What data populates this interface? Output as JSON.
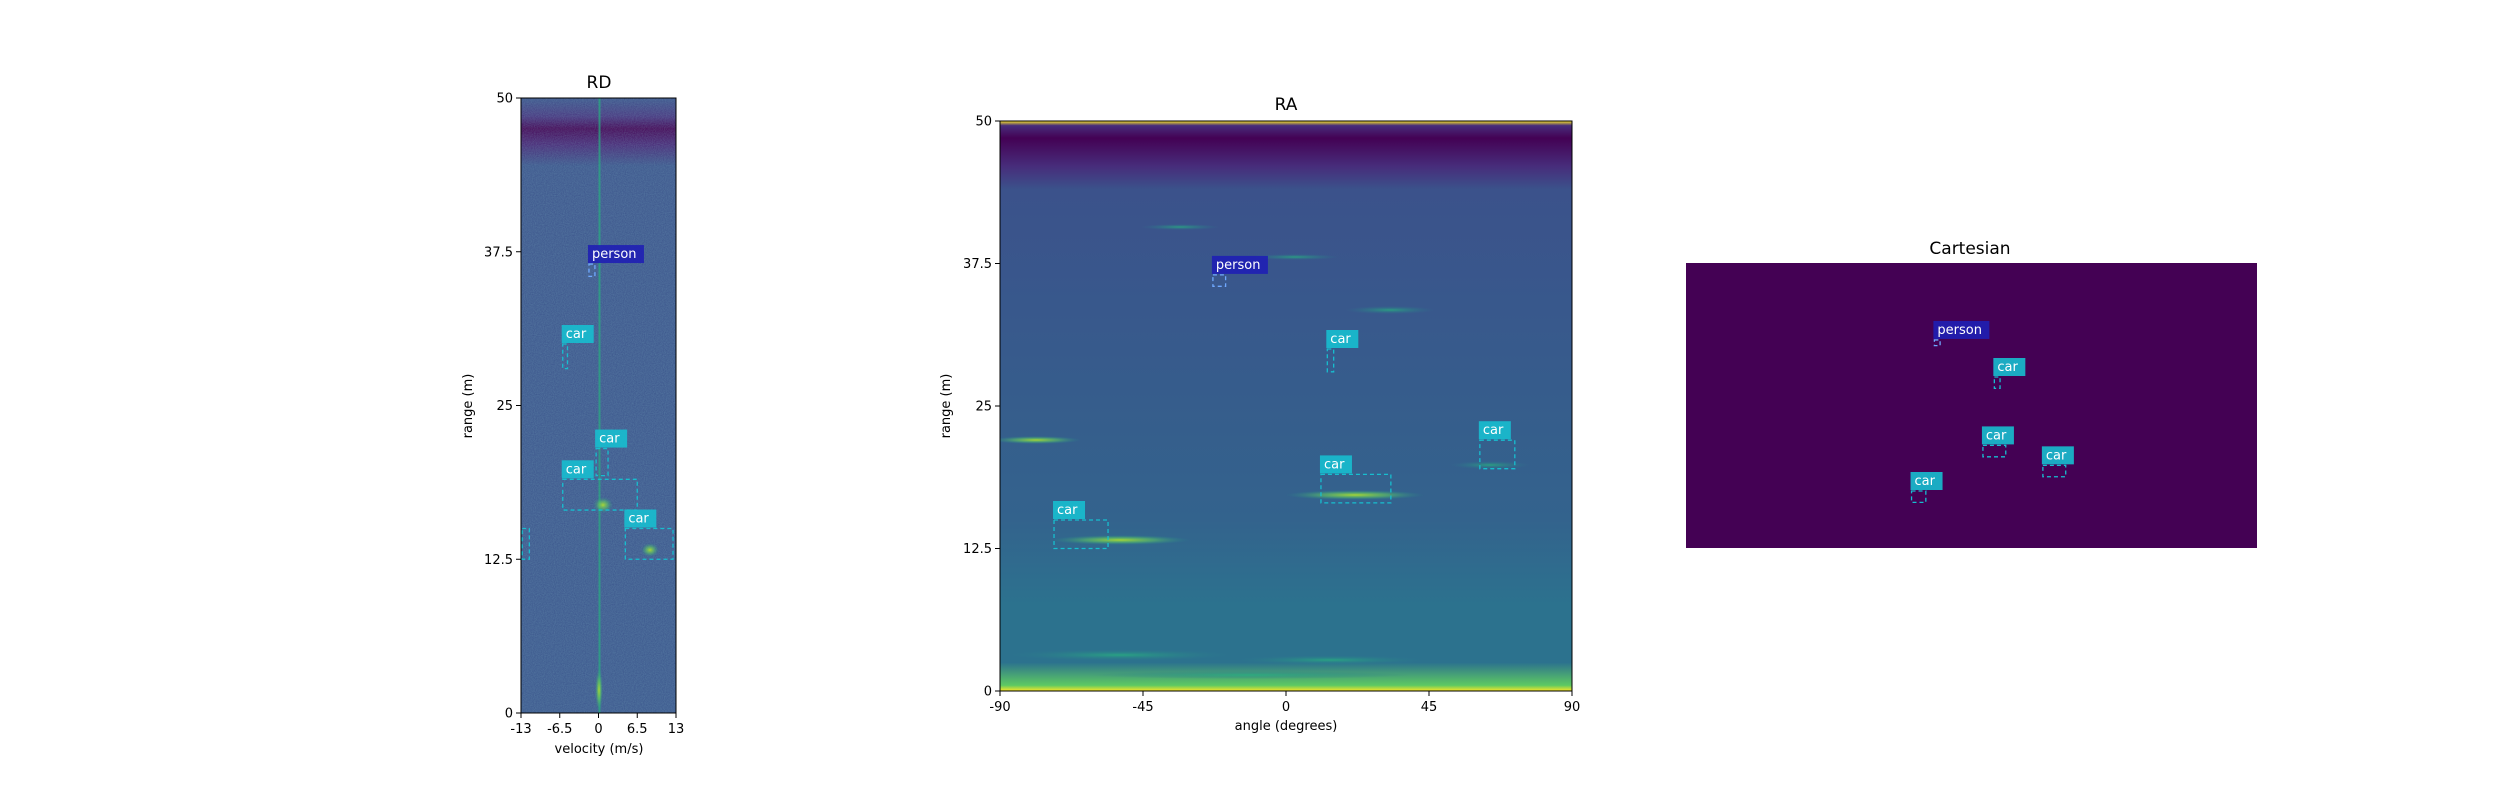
{
  "colors": {
    "colormap": [
      "#440154",
      "#472d7b",
      "#3b528b",
      "#2c728e",
      "#21918c",
      "#28ae80",
      "#5ec962",
      "#addc30",
      "#fde725"
    ],
    "car": "#17becf",
    "person": "#1f1fb4",
    "cartesian_bg": "#440154"
  },
  "chart_data": [
    {
      "id": "rd",
      "type": "heatmap",
      "title": "RD",
      "xlabel": "velocity (m/s)",
      "ylabel": "range (m)",
      "xlim": [
        -13,
        13
      ],
      "ylim": [
        0,
        50
      ],
      "xticks": [
        -13,
        -6.5,
        0,
        6.5,
        13
      ],
      "xtick_labels": [
        "-13",
        "-6.5",
        "0",
        "6.5",
        "13"
      ],
      "yticks": [
        0,
        12.5,
        25,
        37.5,
        50
      ],
      "ytick_labels": [
        "0",
        "12.5",
        "25",
        "37.5",
        "50"
      ],
      "detections": [
        {
          "label": "person",
          "x0": -1.6,
          "x1": -0.6,
          "y0": 35.5,
          "y1": 36.5
        },
        {
          "label": "car",
          "x0": -6.0,
          "x1": -5.2,
          "y0": 28.0,
          "y1": 30.0
        },
        {
          "label": "car",
          "x0": -0.4,
          "x1": 1.6,
          "y0": 19.3,
          "y1": 21.5
        },
        {
          "label": "car",
          "x0": -6.0,
          "x1": 6.5,
          "y0": 16.5,
          "y1": 19.0
        },
        {
          "label": "car",
          "x0": 4.5,
          "x1": 12.5,
          "y0": 12.5,
          "y1": 15.0
        },
        {
          "label": "",
          "x0": -12.8,
          "x1": -11.6,
          "y0": 12.5,
          "y1": 15.0
        }
      ]
    },
    {
      "id": "ra",
      "type": "heatmap",
      "title": "RA",
      "xlabel": "angle (degrees)",
      "ylabel": "range (m)",
      "xlim": [
        -90,
        90
      ],
      "ylim": [
        0,
        50
      ],
      "xticks": [
        -90,
        -45,
        0,
        45,
        90
      ],
      "xtick_labels": [
        "-90",
        "-45",
        "0",
        "45",
        "90"
      ],
      "yticks": [
        0,
        12.5,
        25,
        37.5,
        50
      ],
      "ytick_labels": [
        "0",
        "12.5",
        "25",
        "37.5",
        "50"
      ],
      "detections": [
        {
          "label": "person",
          "x0": -23,
          "x1": -19,
          "y0": 35.5,
          "y1": 36.5
        },
        {
          "label": "car",
          "x0": 13,
          "x1": 15,
          "y0": 28.0,
          "y1": 30.0
        },
        {
          "label": "car",
          "x0": 61,
          "x1": 72,
          "y0": 19.5,
          "y1": 22.0
        },
        {
          "label": "car",
          "x0": 11,
          "x1": 33,
          "y0": 16.5,
          "y1": 19.0
        },
        {
          "label": "car",
          "x0": -73,
          "x1": -56,
          "y0": 12.5,
          "y1": 15.0
        }
      ]
    },
    {
      "id": "cartesian",
      "type": "heatmap",
      "title": "Cartesian",
      "xlim": [
        -50,
        50
      ],
      "ylim": [
        0,
        50
      ],
      "detections": [
        {
          "label": "person",
          "x0": -6.5,
          "x1": -5.5,
          "y0": 35.5,
          "y1": 36.5
        },
        {
          "label": "car",
          "x0": 4.0,
          "x1": 5.0,
          "y0": 28.0,
          "y1": 30.0
        },
        {
          "label": "car",
          "x0": 2.0,
          "x1": 6.0,
          "y0": 16.0,
          "y1": 18.0
        },
        {
          "label": "car",
          "x0": 12.5,
          "x1": 16.5,
          "y0": 12.5,
          "y1": 14.5
        },
        {
          "label": "car",
          "x0": -10.5,
          "x1": -8.0,
          "y0": 8.0,
          "y1": 10.0
        }
      ]
    }
  ]
}
